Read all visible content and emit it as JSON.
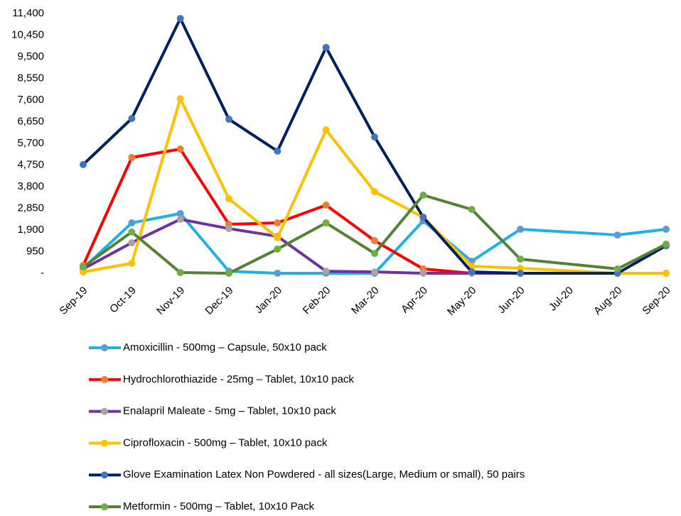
{
  "chart_data": {
    "type": "line",
    "categories": [
      "Sep-19",
      "Oct-19",
      "Nov-19",
      "Dec-19",
      "Jan-20",
      "Feb-20",
      "Mar-20",
      "Apr-20",
      "May-20",
      "Jun-20",
      "Jul-20",
      "Aug-20",
      "Sep-20"
    ],
    "ylim": [
      0,
      11400
    ],
    "yticks": [
      {
        "value": 0,
        "label": "-"
      },
      {
        "value": 950,
        "label": "950"
      },
      {
        "value": 1900,
        "label": "1,900"
      },
      {
        "value": 2850,
        "label": "2,850"
      },
      {
        "value": 3800,
        "label": "3,800"
      },
      {
        "value": 4750,
        "label": "4,750"
      },
      {
        "value": 5700,
        "label": "5,700"
      },
      {
        "value": 6650,
        "label": "6,650"
      },
      {
        "value": 7600,
        "label": "7,600"
      },
      {
        "value": 8550,
        "label": "8,550"
      },
      {
        "value": 9500,
        "label": "9,500"
      },
      {
        "value": 10450,
        "label": "10,450"
      },
      {
        "value": 11400,
        "label": "11,400"
      }
    ],
    "connect_gaps": true,
    "series": [
      {
        "name": "Amoxicillin - 500mg – Capsule, 50x10 pack",
        "color": "#1fb0e8",
        "marker_color": "#5b9bd5",
        "values": [
          220,
          2210,
          2620,
          90,
          0,
          0,
          0,
          2300,
          530,
          1930,
          null,
          1680,
          1930
        ]
      },
      {
        "name": "Hydrochlorothiazide - 25mg – Tablet, 10x10 pack",
        "color": "#ff0000",
        "marker_color": "#ed7d31",
        "values": [
          340,
          5080,
          5450,
          2150,
          2210,
          2990,
          1430,
          190,
          0,
          0,
          null,
          0,
          0
        ]
      },
      {
        "name": "Enalapril Maleate - 5mg – Tablet, 10x10 pack",
        "color": "#7030a0",
        "marker_color": "#a5a5a5",
        "values": [
          190,
          1340,
          2370,
          1960,
          1620,
          90,
          60,
          0,
          0,
          0,
          null,
          0,
          0
        ]
      },
      {
        "name": "Ciprofloxacin - 500mg – Tablet, 10x10 pack",
        "color": "#ffc000",
        "marker_color": "#ffc000",
        "values": [
          60,
          440,
          7660,
          3270,
          1560,
          6290,
          3580,
          2460,
          310,
          220,
          null,
          0,
          0
        ]
      },
      {
        "name": "Glove Examination Latex Non Powdered - all sizes(Large, Medium or small), 50 pairs",
        "color": "#002060",
        "marker_color": "#4472c4",
        "values": [
          4770,
          6790,
          11180,
          6760,
          5360,
          9910,
          5980,
          2460,
          60,
          0,
          null,
          0,
          1210
        ]
      },
      {
        "name": "Metformin - 500mg – Tablet, 10x10 Pack",
        "color": "#548235",
        "marker_color": "#70ad47",
        "values": [
          280,
          1810,
          30,
          0,
          1060,
          2210,
          870,
          3430,
          2800,
          620,
          null,
          190,
          1280
        ]
      }
    ]
  }
}
